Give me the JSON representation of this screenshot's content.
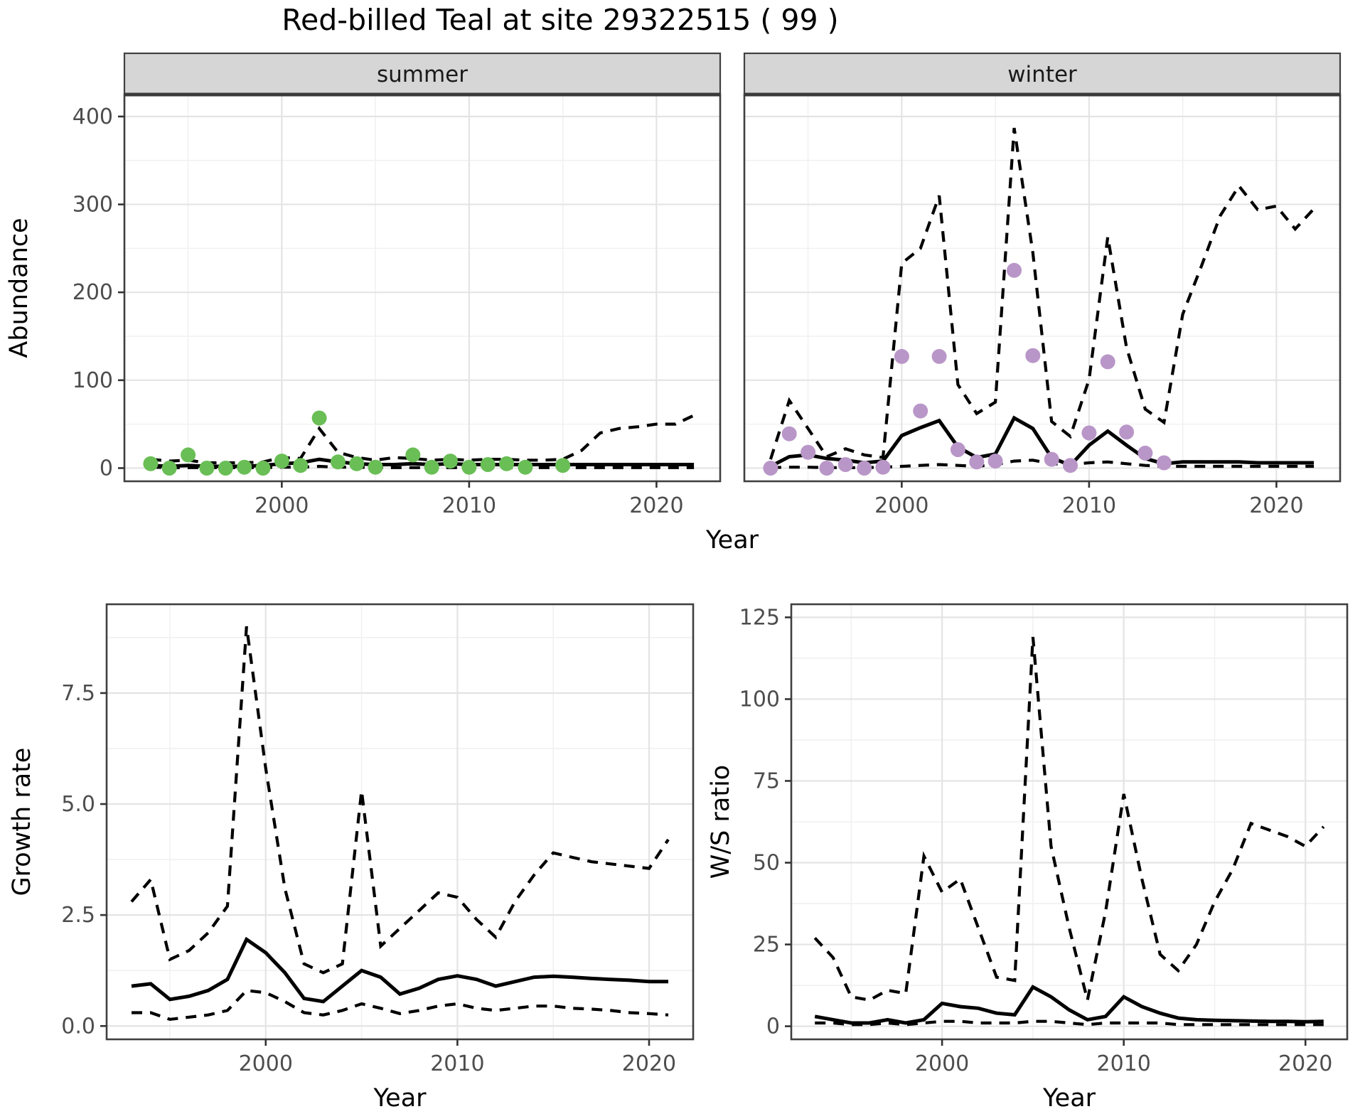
{
  "title": "Red-billed Teal at site 29322515 ( 99 )",
  "colors": {
    "summer_points": "#69be55",
    "winter_points": "#b996c8",
    "line": "#000000",
    "strip_bg": "#d6d6d6",
    "panel_border": "#404040",
    "grid_major": "#e4e4e4",
    "grid_minor": "#f1f1f1",
    "axis_text": "#4d4d4d",
    "title_text": "#000000"
  },
  "top_row_xlabel": "Year",
  "chart_data": [
    {
      "id": "abundance-summer",
      "type": "line",
      "strip_label": "summer",
      "ylabel": "Abundance",
      "xlabel": null,
      "xlim": [
        1991.6,
        2023.4
      ],
      "ylim": [
        -15,
        425
      ],
      "xticks": [
        2000,
        2010,
        2020
      ],
      "xtick_labels": [
        "2000",
        "2010",
        "2020"
      ],
      "x_minor": [
        1995,
        2005,
        2015
      ],
      "y_major": [
        0,
        100,
        200,
        300,
        400
      ],
      "y_minor": [
        50,
        150,
        250,
        350
      ],
      "ytick_labels": [
        "0",
        "100",
        "200",
        "300",
        "400"
      ],
      "years": [
        1993,
        1994,
        1995,
        1996,
        1997,
        1998,
        1999,
        2000,
        2001,
        2002,
        2003,
        2004,
        2005,
        2006,
        2007,
        2008,
        2009,
        2010,
        2011,
        2012,
        2013,
        2014,
        2015,
        2016,
        2017,
        2018,
        2019,
        2020,
        2021,
        2022
      ],
      "series": [
        {
          "name": "lower_ci",
          "style": "dashed",
          "values": [
            1,
            0.5,
            0.5,
            0.5,
            0.5,
            0.5,
            0.5,
            1,
            1,
            2,
            1,
            1,
            0.5,
            0.5,
            0.5,
            0.5,
            0.5,
            0.5,
            0.5,
            0.5,
            0.5,
            0.5,
            0.5,
            0.5,
            0.5,
            0.5,
            0.5,
            0.5,
            0.5,
            0.5
          ]
        },
        {
          "name": "upper_ci",
          "style": "dashed",
          "values": [
            10,
            8,
            9,
            6,
            6,
            6,
            7,
            12,
            11,
            45,
            18,
            12,
            9,
            12,
            11,
            9,
            10,
            9,
            10,
            10,
            9,
            9,
            10,
            20,
            40,
            45,
            47,
            50,
            50,
            60
          ]
        },
        {
          "name": "median",
          "style": "solid",
          "values": [
            3,
            2,
            3,
            2,
            2,
            2,
            3,
            5,
            6,
            10,
            7,
            5,
            4,
            4,
            5,
            4,
            5,
            4,
            4,
            4,
            4,
            4,
            4,
            4,
            4,
            4,
            4,
            4,
            4,
            4
          ]
        }
      ],
      "points": {
        "name": "summer-observations",
        "color": "#69be55",
        "years": [
          1993,
          1994,
          1995,
          1996,
          1997,
          1998,
          1999,
          2000,
          2001,
          2002,
          2003,
          2004,
          2005,
          2007,
          2008,
          2009,
          2010,
          2011,
          2012,
          2013,
          2015
        ],
        "values": [
          5,
          0,
          15,
          0,
          0,
          1,
          0,
          8,
          3,
          57,
          7,
          5,
          1,
          15,
          1,
          8,
          1,
          4,
          5,
          1,
          3
        ]
      }
    },
    {
      "id": "abundance-winter",
      "type": "line",
      "strip_label": "winter",
      "ylabel": null,
      "xlabel": null,
      "xlim": [
        1991.6,
        2023.4
      ],
      "ylim": [
        -15,
        425
      ],
      "xticks": [
        2000,
        2010,
        2020
      ],
      "xtick_labels": [
        "2000",
        "2010",
        "2020"
      ],
      "x_minor": [
        1995,
        2005,
        2015
      ],
      "y_major": [
        0,
        100,
        200,
        300,
        400
      ],
      "y_minor": [
        50,
        150,
        250,
        350
      ],
      "ytick_labels": null,
      "years": [
        1993,
        1994,
        1995,
        1996,
        1997,
        1998,
        1999,
        2000,
        2001,
        2002,
        2003,
        2004,
        2005,
        2006,
        2007,
        2008,
        2009,
        2010,
        2011,
        2012,
        2013,
        2014,
        2015,
        2016,
        2017,
        2018,
        2019,
        2020,
        2021,
        2022
      ],
      "series": [
        {
          "name": "lower_ci",
          "style": "dashed",
          "values": [
            0.5,
            1,
            1,
            0.5,
            0.5,
            0.5,
            1,
            2,
            3,
            4,
            3,
            2,
            4,
            8,
            9,
            5,
            4,
            6,
            7,
            5,
            3,
            2,
            2,
            2,
            2,
            2,
            2,
            2,
            2,
            2
          ]
        },
        {
          "name": "upper_ci",
          "style": "dashed",
          "values": [
            10,
            77,
            45,
            13,
            22,
            15,
            12,
            233,
            250,
            310,
            95,
            62,
            75,
            387,
            245,
            53,
            36,
            101,
            263,
            137,
            67,
            52,
            175,
            230,
            287,
            321,
            294,
            298,
            272,
            295
          ]
        },
        {
          "name": "median",
          "style": "solid",
          "values": [
            2,
            13,
            15,
            11,
            9,
            6,
            8,
            37,
            46,
            54,
            24,
            12,
            16,
            57,
            45,
            12,
            3,
            26,
            42,
            26,
            11,
            5,
            7,
            7,
            7,
            7,
            6,
            6,
            6,
            6
          ]
        }
      ],
      "points": {
        "name": "winter-observations",
        "color": "#b996c8",
        "years": [
          1993,
          1994,
          1995,
          1996,
          1997,
          1998,
          1999,
          2000,
          2001,
          2002,
          2003,
          2004,
          2005,
          2006,
          2007,
          2008,
          2009,
          2010,
          2011,
          2012,
          2013,
          2014
        ],
        "values": [
          0,
          39,
          18,
          0,
          4,
          0,
          1,
          127,
          65,
          127,
          21,
          7,
          8,
          225,
          128,
          10,
          3,
          40,
          121,
          41,
          17,
          6
        ]
      }
    },
    {
      "id": "growth-rate",
      "type": "line",
      "strip_label": null,
      "ylabel": "Growth rate",
      "xlabel": "Year",
      "xlim": [
        1991.7,
        2022.3
      ],
      "ylim": [
        -0.3,
        9.5
      ],
      "xticks": [
        2000,
        2010,
        2020
      ],
      "xtick_labels": [
        "2000",
        "2010",
        "2020"
      ],
      "x_minor": [
        1995,
        2005,
        2015
      ],
      "y_major": [
        0,
        2.5,
        5,
        7.5
      ],
      "y_minor": [
        1.25,
        3.75,
        6.25,
        8.75
      ],
      "ytick_labels": [
        "0.0",
        "2.5",
        "5.0",
        "7.5"
      ],
      "years": [
        1993,
        1994,
        1995,
        1996,
        1997,
        1998,
        1999,
        2000,
        2001,
        2002,
        2003,
        2004,
        2005,
        2006,
        2007,
        2008,
        2009,
        2010,
        2011,
        2012,
        2013,
        2014,
        2015,
        2016,
        2017,
        2018,
        2019,
        2020,
        2021
      ],
      "series": [
        {
          "name": "lower_ci",
          "style": "dashed",
          "values": [
            0.3,
            0.3,
            0.15,
            0.2,
            0.25,
            0.35,
            0.8,
            0.75,
            0.55,
            0.3,
            0.25,
            0.35,
            0.5,
            0.4,
            0.28,
            0.35,
            0.45,
            0.5,
            0.4,
            0.35,
            0.4,
            0.45,
            0.45,
            0.4,
            0.38,
            0.35,
            0.3,
            0.28,
            0.25
          ]
        },
        {
          "name": "upper_ci",
          "style": "dashed",
          "values": [
            2.8,
            3.3,
            1.5,
            1.7,
            2.1,
            2.7,
            9.0,
            5.8,
            3.1,
            1.4,
            1.2,
            1.4,
            5.3,
            1.8,
            2.2,
            2.6,
            3.0,
            2.9,
            2.4,
            2.0,
            2.8,
            3.4,
            3.9,
            3.8,
            3.7,
            3.65,
            3.6,
            3.55,
            4.2
          ]
        },
        {
          "name": "median",
          "style": "solid",
          "values": [
            0.9,
            0.95,
            0.6,
            0.67,
            0.8,
            1.05,
            1.95,
            1.65,
            1.2,
            0.62,
            0.55,
            0.9,
            1.25,
            1.1,
            0.72,
            0.85,
            1.05,
            1.13,
            1.05,
            0.9,
            1.0,
            1.1,
            1.12,
            1.1,
            1.07,
            1.05,
            1.03,
            1.0,
            1.0
          ]
        }
      ],
      "points": null
    },
    {
      "id": "ws-ratio",
      "type": "line",
      "strip_label": null,
      "ylabel": "W/S ratio",
      "xlabel": "Year",
      "xlim": [
        1991.7,
        2022.3
      ],
      "ylim": [
        -4,
        129
      ],
      "xticks": [
        2000,
        2010,
        2020
      ],
      "xtick_labels": [
        "2000",
        "2010",
        "2020"
      ],
      "x_minor": [
        1995,
        2005,
        2015
      ],
      "y_major": [
        0,
        25,
        50,
        75,
        100,
        125
      ],
      "y_minor": [
        12.5,
        37.5,
        62.5,
        87.5,
        112.5
      ],
      "ytick_labels": [
        "0",
        "25",
        "50",
        "75",
        "100",
        "125"
      ],
      "years": [
        1993,
        1994,
        1995,
        1996,
        1997,
        1998,
        1999,
        2000,
        2001,
        2002,
        2003,
        2004,
        2005,
        2006,
        2007,
        2008,
        2009,
        2010,
        2011,
        2012,
        2013,
        2014,
        2015,
        2016,
        2017,
        2018,
        2019,
        2020,
        2021
      ],
      "series": [
        {
          "name": "lower_ci",
          "style": "dashed",
          "values": [
            1,
            1,
            0.5,
            0.5,
            1,
            0.5,
            1,
            1.5,
            1.5,
            1,
            1,
            1,
            1.5,
            1.5,
            1,
            0.5,
            1,
            1,
            1,
            1,
            0.5,
            0.5,
            0.5,
            0.5,
            0.5,
            0.5,
            0.5,
            0.5,
            0.5
          ]
        },
        {
          "name": "upper_ci",
          "style": "dashed",
          "values": [
            27,
            21,
            9,
            8,
            11,
            10,
            52,
            41,
            45,
            30,
            15,
            14,
            119,
            55,
            30,
            8,
            35,
            71,
            45,
            22,
            17,
            25,
            38,
            48,
            62,
            60,
            58,
            55,
            61
          ]
        },
        {
          "name": "median",
          "style": "solid",
          "values": [
            3,
            2,
            1,
            1,
            2,
            1,
            2,
            7,
            6,
            5.5,
            4,
            3.5,
            12,
            9,
            5,
            2,
            3,
            9,
            6,
            4,
            2.5,
            2,
            1.8,
            1.7,
            1.6,
            1.5,
            1.5,
            1.4,
            1.5
          ]
        }
      ],
      "points": null
    }
  ]
}
